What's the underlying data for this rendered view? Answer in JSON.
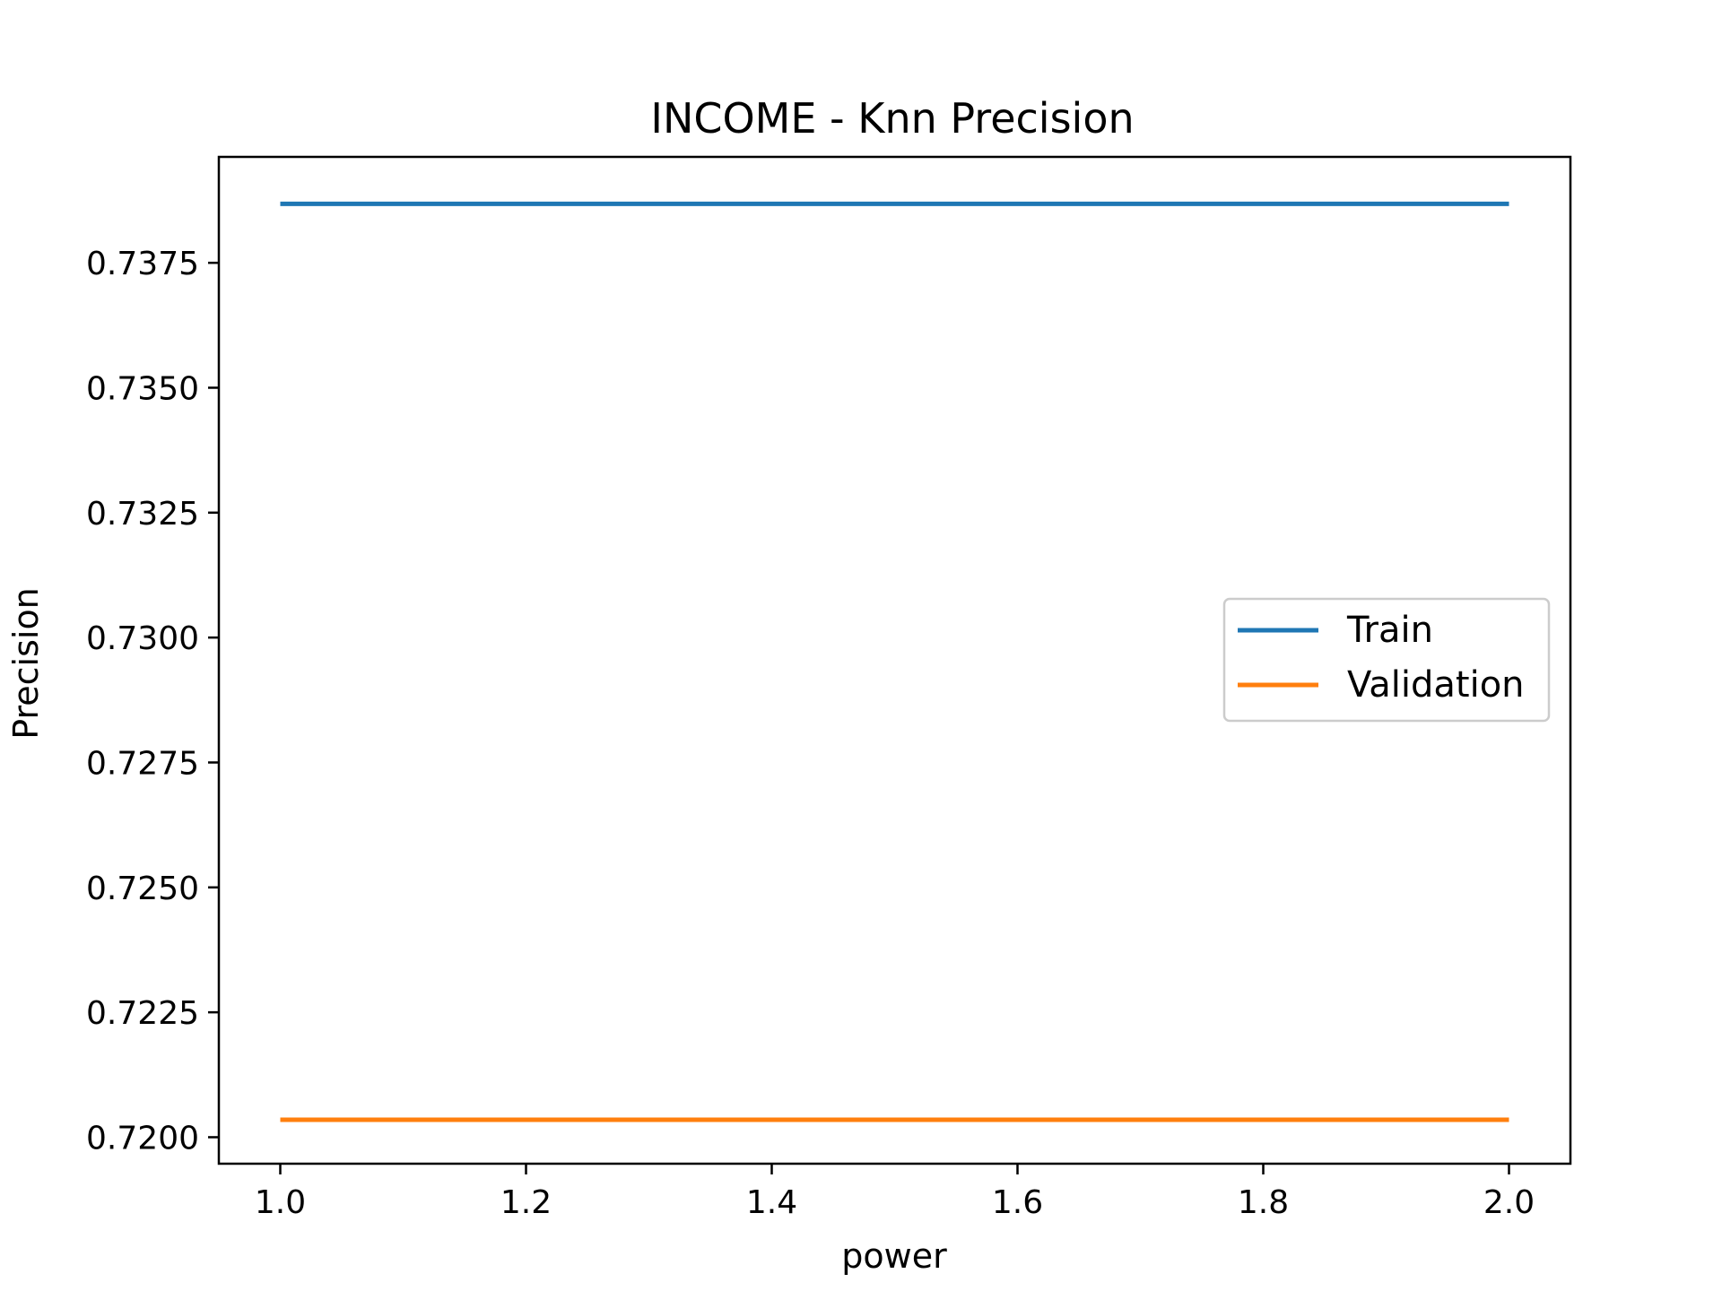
{
  "chart_data": {
    "type": "line",
    "title": "INCOME - Knn Precision",
    "xlabel": "power",
    "ylabel": "Precision",
    "x": [
      1.0,
      2.0
    ],
    "series": [
      {
        "name": "Train",
        "values": [
          0.73868,
          0.73868
        ],
        "color": "#1f77b4"
      },
      {
        "name": "Validation",
        "values": [
          0.72035,
          0.72035
        ],
        "color": "#ff7f0e"
      }
    ],
    "xlim": [
      0.95,
      2.05
    ],
    "ylim": [
      0.71947,
      0.73962
    ],
    "xticks": [
      "1.0",
      "1.2",
      "1.4",
      "1.6",
      "1.8",
      "2.0"
    ],
    "yticks": [
      "0.7200",
      "0.7225",
      "0.7250",
      "0.7275",
      "0.7300",
      "0.7325",
      "0.7350",
      "0.7375"
    ],
    "grid": false,
    "legend_position": "center-right"
  }
}
